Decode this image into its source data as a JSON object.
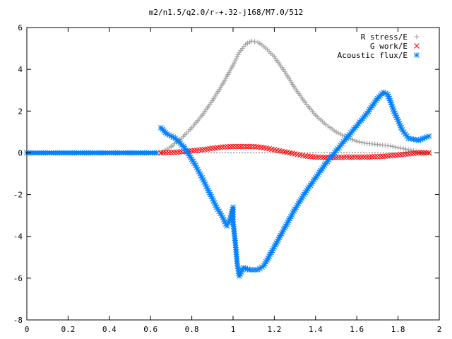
{
  "chart_data": {
    "type": "scatter",
    "title": "m2/n1.5/q2.0/r-+.32-j168/M7.0/512",
    "xlabel": "",
    "ylabel": "",
    "xlim": [
      0,
      2
    ],
    "ylim": [
      -8,
      6
    ],
    "xticks": [
      0,
      0.2,
      0.4,
      0.6,
      0.8,
      1,
      1.2,
      1.4,
      1.6,
      1.8,
      2
    ],
    "xtick_labels": [
      "0",
      "0.2",
      "0.4",
      "0.6",
      "0.8",
      "1",
      "1.2",
      "1.4",
      "1.6",
      "1.8",
      "2"
    ],
    "yticks": [
      -8,
      -6,
      -4,
      -2,
      0,
      2,
      4,
      6
    ],
    "ytick_labels": [
      "-8",
      "-6",
      "-4",
      "-2",
      "0",
      "2",
      "4",
      "6"
    ],
    "grid": false,
    "legend_position": "top-right",
    "series": [
      {
        "name": "R stress/E",
        "color": "#a0a0a0",
        "marker": "plus",
        "points": [
          [
            0.65,
            0.0
          ],
          [
            0.7,
            0.3
          ],
          [
            0.75,
            0.7
          ],
          [
            0.8,
            1.2
          ],
          [
            0.85,
            1.8
          ],
          [
            0.9,
            2.5
          ],
          [
            0.95,
            3.3
          ],
          [
            1.0,
            4.2
          ],
          [
            1.03,
            4.8
          ],
          [
            1.06,
            5.2
          ],
          [
            1.09,
            5.35
          ],
          [
            1.12,
            5.3
          ],
          [
            1.15,
            5.1
          ],
          [
            1.2,
            4.6
          ],
          [
            1.25,
            3.9
          ],
          [
            1.3,
            3.1
          ],
          [
            1.35,
            2.4
          ],
          [
            1.4,
            1.8
          ],
          [
            1.45,
            1.35
          ],
          [
            1.5,
            1.0
          ],
          [
            1.55,
            0.75
          ],
          [
            1.6,
            0.55
          ],
          [
            1.65,
            0.45
          ],
          [
            1.7,
            0.4
          ],
          [
            1.75,
            0.35
          ],
          [
            1.8,
            0.25
          ],
          [
            1.85,
            0.15
          ],
          [
            1.9,
            0.05
          ],
          [
            1.95,
            0.0
          ]
        ]
      },
      {
        "name": "G work/E",
        "color": "#ff0000",
        "marker": "cross",
        "points": [
          [
            0.65,
            0.0
          ],
          [
            0.7,
            0.02
          ],
          [
            0.75,
            0.05
          ],
          [
            0.8,
            0.1
          ],
          [
            0.85,
            0.15
          ],
          [
            0.9,
            0.22
          ],
          [
            0.95,
            0.28
          ],
          [
            1.0,
            0.3
          ],
          [
            1.05,
            0.3
          ],
          [
            1.1,
            0.3
          ],
          [
            1.15,
            0.25
          ],
          [
            1.2,
            0.15
          ],
          [
            1.25,
            0.05
          ],
          [
            1.3,
            -0.05
          ],
          [
            1.35,
            -0.15
          ],
          [
            1.4,
            -0.2
          ],
          [
            1.45,
            -0.22
          ],
          [
            1.5,
            -0.22
          ],
          [
            1.55,
            -0.2
          ],
          [
            1.6,
            -0.2
          ],
          [
            1.65,
            -0.2
          ],
          [
            1.7,
            -0.18
          ],
          [
            1.75,
            -0.15
          ],
          [
            1.8,
            -0.1
          ],
          [
            1.85,
            -0.05
          ],
          [
            1.9,
            0.0
          ],
          [
            1.95,
            0.0
          ]
        ]
      },
      {
        "name": "Acoustic flux/E",
        "color": "#0080ff",
        "marker": "star",
        "points": [
          [
            0.65,
            1.2
          ],
          [
            0.68,
            0.9
          ],
          [
            0.72,
            0.7
          ],
          [
            0.76,
            0.3
          ],
          [
            0.8,
            -0.3
          ],
          [
            0.84,
            -1.0
          ],
          [
            0.88,
            -1.8
          ],
          [
            0.92,
            -2.6
          ],
          [
            0.95,
            -3.1
          ],
          [
            0.97,
            -3.5
          ],
          [
            0.98,
            -3.35
          ],
          [
            0.99,
            -3.0
          ],
          [
            1.0,
            -2.6
          ],
          [
            1.0,
            -3.3
          ],
          [
            1.01,
            -4.2
          ],
          [
            1.02,
            -5.3
          ],
          [
            1.03,
            -5.9
          ],
          [
            1.05,
            -5.5
          ],
          [
            1.08,
            -5.6
          ],
          [
            1.12,
            -5.6
          ],
          [
            1.15,
            -5.4
          ],
          [
            1.2,
            -4.5
          ],
          [
            1.25,
            -3.6
          ],
          [
            1.3,
            -2.7
          ],
          [
            1.35,
            -1.9
          ],
          [
            1.4,
            -1.2
          ],
          [
            1.45,
            -0.5
          ],
          [
            1.5,
            0.1
          ],
          [
            1.55,
            0.7
          ],
          [
            1.6,
            1.3
          ],
          [
            1.65,
            1.9
          ],
          [
            1.7,
            2.6
          ],
          [
            1.73,
            2.9
          ],
          [
            1.75,
            2.8
          ],
          [
            1.78,
            2.0
          ],
          [
            1.82,
            1.1
          ],
          [
            1.85,
            0.7
          ],
          [
            1.9,
            0.6
          ],
          [
            1.95,
            0.8
          ]
        ]
      }
    ]
  }
}
